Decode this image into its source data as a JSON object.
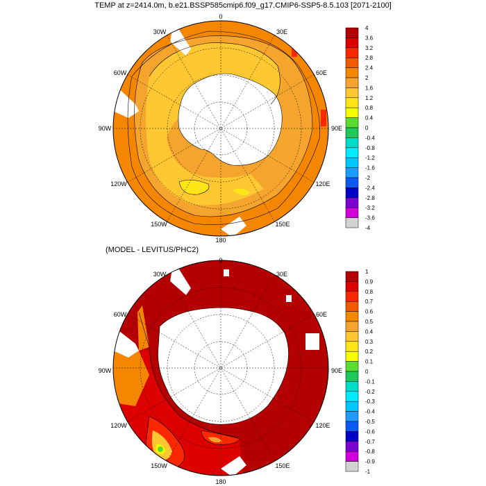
{
  "panel1": {
    "title": "TEMP at z=2414.0m, b.e21.BSSP585cmip6.f09_g17.CMIP6-SSP5-8.5.103 [2071-2100]",
    "lon_labels": [
      "0",
      "30E",
      "60E",
      "90E",
      "120E",
      "150E",
      "180",
      "150W",
      "120W",
      "90W",
      "60W",
      "30W"
    ],
    "colorbar_labels": [
      "4",
      "3.6",
      "3.2",
      "2.8",
      "2.4",
      "2",
      "1.6",
      "1.2",
      "0.8",
      "0.4",
      "0",
      "-0.4",
      "-0.8",
      "-1.2",
      "-1.6",
      "-2",
      "-2.4",
      "-2.8",
      "-3.2",
      "-3.6",
      "-4"
    ],
    "colors": [
      "#b40000",
      "#dc0000",
      "#fa2800",
      "#f05a00",
      "#f58700",
      "#f5a52d",
      "#ffc832",
      "#ffe619",
      "#f5ff00",
      "#5adc32",
      "#1ec85a",
      "#00dcc8",
      "#00ebff",
      "#00c8ff",
      "#1e9bff",
      "#0a5af5",
      "#0000c8",
      "#7d00d2",
      "#d200dc",
      "#d2d2d2",
      "#828282"
    ]
  },
  "panel2": {
    "title": "(MODEL - LEVITUS/PHC2)",
    "lon_labels": [
      "0",
      "30E",
      "60E",
      "90E",
      "120E",
      "150E",
      "180",
      "150W",
      "120W",
      "90W",
      "60W",
      "30W"
    ],
    "colorbar_labels": [
      "1",
      "0.9",
      "0.8",
      "0.7",
      "0.6",
      "0.5",
      "0.4",
      "0.3",
      "0.2",
      "0.1",
      "0",
      "-0.1",
      "-0.2",
      "-0.3",
      "-0.4",
      "-0.5",
      "-0.6",
      "-0.7",
      "-0.8",
      "-0.9",
      "-1"
    ],
    "colors": [
      "#b40000",
      "#dc0000",
      "#fa2800",
      "#f05a00",
      "#f58700",
      "#f5a52d",
      "#ffc832",
      "#ffe619",
      "#f5ff00",
      "#5adc32",
      "#1ec85a",
      "#00dcc8",
      "#00ebff",
      "#00c8ff",
      "#1e9bff",
      "#0a5af5",
      "#0000c8",
      "#7d00d2",
      "#d200dc",
      "#d2d2d2",
      "#828282"
    ]
  }
}
